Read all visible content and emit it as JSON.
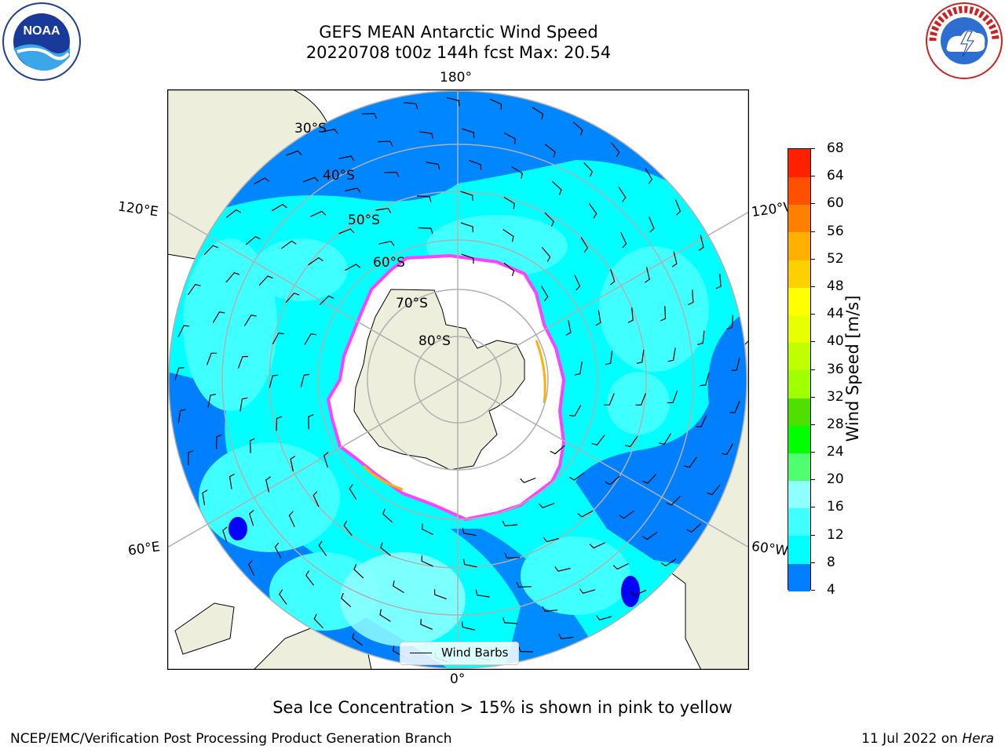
{
  "title": {
    "line1": "GEFS MEAN Antarctic Wind Speed",
    "line2": "20220708 t00z 144h fcst   Max: 20.54"
  },
  "logos": {
    "left": "noaa-logo",
    "right": "national-weather-service-logo"
  },
  "map": {
    "projection": "south-polar-stereographic",
    "longitude_labels": {
      "top": "180°",
      "bottom": "0°",
      "left_upper": "120°E",
      "left_lower": "60°E",
      "right_upper": "120°W",
      "right_lower": "60°W"
    },
    "latitude_labels": [
      "30°S",
      "40°S",
      "50°S",
      "60°S",
      "70°S",
      "80°S"
    ],
    "legend": {
      "entry": "Wind Barbs"
    }
  },
  "colorbar": {
    "title": "Wind Speed [m/s]",
    "ticks": [
      "4",
      "8",
      "12",
      "16",
      "20",
      "24",
      "28",
      "32",
      "36",
      "40",
      "44",
      "48",
      "52",
      "56",
      "60",
      "64",
      "68"
    ],
    "colors": [
      "#0000ff",
      "#0080ff",
      "#00ffff",
      "#40ffff",
      "#90ffff",
      "#50ff70",
      "#00ff00",
      "#50e000",
      "#a0ff00",
      "#c0ff00",
      "#e8ff00",
      "#ffff00",
      "#ffd000",
      "#ffb000",
      "#ff8000",
      "#ff5000",
      "#ff2000",
      "#ff0000"
    ]
  },
  "colors": {
    "land": "#eeeedd",
    "ice": "#ffffff",
    "sea_ice_edge": "#ff40ff",
    "grid": "#b0b0b0"
  },
  "note": "Sea Ice Concentration > 15% is shown in pink to yellow",
  "footer": {
    "left": "NCEP/EMC/Verification Post Processing Product Generation Branch",
    "right_prefix": "11 Jul 2022 on ",
    "right_host": "Hera"
  }
}
